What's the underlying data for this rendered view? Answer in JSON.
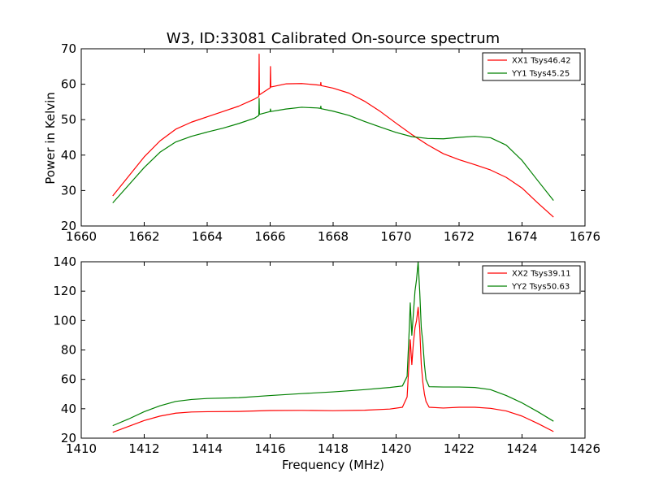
{
  "title": "W3, ID:33081 Calibrated On-source spectrum",
  "ylabel": "Power in Kelvin",
  "xlabel": "Frequency (MHz)",
  "colors": {
    "series1": "#ff0000",
    "series2": "#008000"
  },
  "chart_data": [
    {
      "type": "line",
      "xlim": [
        1660,
        1676
      ],
      "ylim": [
        20,
        70
      ],
      "xticks": [
        1660,
        1662,
        1664,
        1666,
        1668,
        1670,
        1672,
        1674,
        1676
      ],
      "yticks": [
        20,
        30,
        40,
        50,
        60,
        70
      ],
      "legend": "top-right",
      "grid": false,
      "series": [
        {
          "name": "XX1 Tsys46.42",
          "color": "#ff0000",
          "points": [
            [
              1661,
              28.5
            ],
            [
              1661.5,
              34
            ],
            [
              1662,
              39.5
            ],
            [
              1662.5,
              44
            ],
            [
              1663,
              47.3
            ],
            [
              1663.5,
              49.3
            ],
            [
              1664,
              50.8
            ],
            [
              1664.5,
              52.3
            ],
            [
              1665,
              53.8
            ],
            [
              1665.5,
              55.8
            ],
            [
              1665.64,
              56.5
            ],
            [
              1665.65,
              68.5
            ],
            [
              1665.66,
              57
            ],
            [
              1666,
              59
            ],
            [
              1666.01,
              65
            ],
            [
              1666.02,
              59.2
            ],
            [
              1666.5,
              60.1
            ],
            [
              1667,
              60.2
            ],
            [
              1667.5,
              59.8
            ],
            [
              1667.6,
              59.7
            ],
            [
              1667.61,
              60.5
            ],
            [
              1667.62,
              59.6
            ],
            [
              1668,
              58.9
            ],
            [
              1668.5,
              57.5
            ],
            [
              1669,
              55.2
            ],
            [
              1669.5,
              52.3
            ],
            [
              1670,
              49
            ],
            [
              1670.5,
              45.8
            ],
            [
              1671,
              42.9
            ],
            [
              1671.5,
              40.4
            ],
            [
              1672,
              38.7
            ],
            [
              1672.5,
              37.3
            ],
            [
              1673,
              35.8
            ],
            [
              1673.5,
              33.7
            ],
            [
              1674,
              30.7
            ],
            [
              1674.5,
              26.5
            ],
            [
              1675,
              22.5
            ]
          ]
        },
        {
          "name": "YY1 Tsys45.25",
          "color": "#008000",
          "points": [
            [
              1661,
              26.5
            ],
            [
              1661.5,
              31.5
            ],
            [
              1662,
              36.5
            ],
            [
              1662.5,
              40.8
            ],
            [
              1663,
              43.7
            ],
            [
              1663.5,
              45.3
            ],
            [
              1664,
              46.5
            ],
            [
              1664.5,
              47.6
            ],
            [
              1665,
              48.9
            ],
            [
              1665.5,
              50.4
            ],
            [
              1665.64,
              51.2
            ],
            [
              1665.65,
              56
            ],
            [
              1665.66,
              51.5
            ],
            [
              1666,
              52.3
            ],
            [
              1666.01,
              53
            ],
            [
              1666.02,
              52.3
            ],
            [
              1666.5,
              53
            ],
            [
              1667,
              53.5
            ],
            [
              1667.5,
              53.3
            ],
            [
              1667.6,
              53.2
            ],
            [
              1667.61,
              53.8
            ],
            [
              1667.62,
              53.1
            ],
            [
              1668,
              52.4
            ],
            [
              1668.5,
              51.2
            ],
            [
              1669,
              49.5
            ],
            [
              1669.5,
              47.9
            ],
            [
              1670,
              46.4
            ],
            [
              1670.5,
              45.2
            ],
            [
              1671,
              44.7
            ],
            [
              1671.5,
              44.6
            ],
            [
              1672,
              45
            ],
            [
              1672.5,
              45.3
            ],
            [
              1673,
              44.9
            ],
            [
              1673.5,
              42.8
            ],
            [
              1674,
              38.5
            ],
            [
              1674.5,
              32.8
            ],
            [
              1675,
              27.2
            ]
          ]
        }
      ]
    },
    {
      "type": "line",
      "xlim": [
        1410,
        1426
      ],
      "ylim": [
        20,
        140
      ],
      "xticks": [
        1410,
        1412,
        1414,
        1416,
        1418,
        1420,
        1422,
        1424,
        1426
      ],
      "yticks": [
        20,
        40,
        60,
        80,
        100,
        120,
        140
      ],
      "legend": "top-right",
      "grid": false,
      "series": [
        {
          "name": "XX2 Tsys39.11",
          "color": "#ff0000",
          "points": [
            [
              1411,
              24
            ],
            [
              1411.5,
              28
            ],
            [
              1412,
              32
            ],
            [
              1412.5,
              35
            ],
            [
              1413,
              37
            ],
            [
              1413.5,
              37.8
            ],
            [
              1414,
              38
            ],
            [
              1415,
              38.2
            ],
            [
              1416,
              38.8
            ],
            [
              1417,
              38.9
            ],
            [
              1418,
              38.7
            ],
            [
              1419,
              39
            ],
            [
              1419.8,
              39.8
            ],
            [
              1420.2,
              41
            ],
            [
              1420.35,
              48
            ],
            [
              1420.42,
              75
            ],
            [
              1420.45,
              87
            ],
            [
              1420.5,
              70
            ],
            [
              1420.55,
              85
            ],
            [
              1420.6,
              95
            ],
            [
              1420.65,
              100
            ],
            [
              1420.7,
              109
            ],
            [
              1420.75,
              95
            ],
            [
              1420.8,
              70
            ],
            [
              1420.85,
              58
            ],
            [
              1420.9,
              50
            ],
            [
              1420.95,
              45
            ],
            [
              1421.05,
              41
            ],
            [
              1421.5,
              40.5
            ],
            [
              1422,
              41
            ],
            [
              1422.5,
              41
            ],
            [
              1423,
              40.3
            ],
            [
              1423.5,
              38.5
            ],
            [
              1424,
              35
            ],
            [
              1424.5,
              30
            ],
            [
              1425,
              24.5
            ]
          ]
        },
        {
          "name": "YY2 Tsys50.63",
          "color": "#008000",
          "points": [
            [
              1411,
              28.5
            ],
            [
              1411.5,
              33
            ],
            [
              1412,
              38
            ],
            [
              1412.5,
              42
            ],
            [
              1413,
              45
            ],
            [
              1413.5,
              46.3
            ],
            [
              1414,
              47
            ],
            [
              1415,
              47.5
            ],
            [
              1416,
              49
            ],
            [
              1417,
              50.3
            ],
            [
              1418,
              51.5
            ],
            [
              1419,
              53
            ],
            [
              1419.8,
              54.5
            ],
            [
              1420.2,
              55.5
            ],
            [
              1420.35,
              62
            ],
            [
              1420.42,
              95
            ],
            [
              1420.45,
              112
            ],
            [
              1420.5,
              90
            ],
            [
              1420.55,
              105
            ],
            [
              1420.6,
              120
            ],
            [
              1420.65,
              128
            ],
            [
              1420.7,
              140
            ],
            [
              1420.75,
              120
            ],
            [
              1420.8,
              95
            ],
            [
              1420.85,
              85
            ],
            [
              1420.9,
              70
            ],
            [
              1420.95,
              60
            ],
            [
              1421.05,
              55
            ],
            [
              1421.5,
              54.8
            ],
            [
              1422,
              54.8
            ],
            [
              1422.5,
              54.5
            ],
            [
              1423,
              53
            ],
            [
              1423.5,
              49
            ],
            [
              1424,
              44
            ],
            [
              1424.5,
              38
            ],
            [
              1425,
              31.5
            ]
          ]
        }
      ]
    }
  ]
}
